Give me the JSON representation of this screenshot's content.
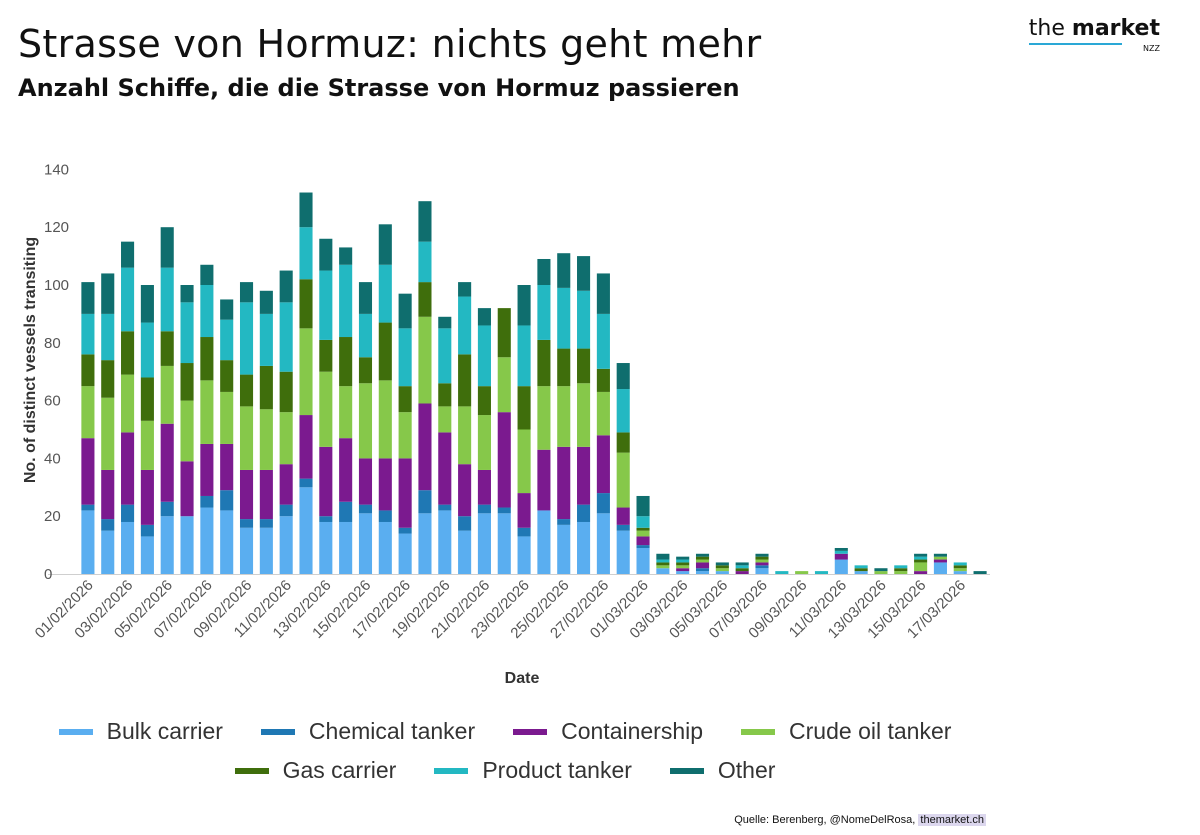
{
  "header": {
    "title": "Strasse von Hormuz: nichts geht mehr",
    "subtitle": "Anzahl Schiffe, die die Strasse von Hormuz passieren"
  },
  "logo": {
    "prefix": "the ",
    "brand": "market",
    "sub": "NZZ",
    "accent": "#2aa8d6"
  },
  "source": {
    "prefix": "Quelle: Berenberg, @NomeDelRosa, ",
    "link": "themarket.ch"
  },
  "chart_data": {
    "type": "bar",
    "stacked": true,
    "title": "",
    "xlabel": "Date",
    "ylabel": "No. of distinct vessels transiting",
    "ylim": [
      0,
      140
    ],
    "yticks": [
      0,
      20,
      40,
      60,
      80,
      100,
      120,
      140
    ],
    "categories": [
      "01/02/2026",
      "02/02/2026",
      "03/02/2026",
      "04/02/2026",
      "05/02/2026",
      "06/02/2026",
      "07/02/2026",
      "08/02/2026",
      "09/02/2026",
      "10/02/2026",
      "11/02/2026",
      "12/02/2026",
      "13/02/2026",
      "14/02/2026",
      "15/02/2026",
      "16/02/2026",
      "17/02/2026",
      "18/02/2026",
      "19/02/2026",
      "20/02/2026",
      "21/02/2026",
      "22/02/2026",
      "23/02/2026",
      "24/02/2026",
      "25/02/2026",
      "26/02/2026",
      "27/02/2026",
      "28/02/2026",
      "01/03/2026",
      "02/03/2026",
      "03/03/2026",
      "04/03/2026",
      "05/03/2026",
      "06/03/2026",
      "07/03/2026",
      "08/03/2026",
      "09/03/2026",
      "10/03/2026",
      "11/03/2026",
      "12/03/2026",
      "13/03/2026",
      "14/03/2026",
      "15/03/2026",
      "16/03/2026",
      "17/03/2026",
      "18/03/2026"
    ],
    "tick_labels": [
      "01/02/2026",
      "03/02/2026",
      "05/02/2026",
      "07/02/2026",
      "09/02/2026",
      "11/02/2026",
      "13/02/2026",
      "15/02/2026",
      "17/02/2026",
      "19/02/2026",
      "21/02/2026",
      "23/02/2026",
      "25/02/2026",
      "27/02/2026",
      "01/03/2026",
      "03/03/2026",
      "05/03/2026",
      "07/03/2026",
      "09/03/2026",
      "11/03/2026",
      "13/03/2026",
      "15/03/2026",
      "17/03/2026"
    ],
    "series": [
      {
        "name": "Bulk carrier",
        "color": "#5aaef0",
        "values": [
          22,
          15,
          18,
          13,
          20,
          20,
          23,
          22,
          16,
          16,
          20,
          30,
          18,
          18,
          21,
          18,
          14,
          21,
          22,
          15,
          21,
          21,
          13,
          22,
          17,
          18,
          21,
          15,
          9,
          2,
          1,
          1,
          1,
          0,
          2,
          0,
          0,
          0,
          5,
          1,
          0,
          0,
          0,
          4,
          1,
          0
        ]
      },
      {
        "name": "Chemical tanker",
        "color": "#1f78b4",
        "values": [
          2,
          4,
          6,
          4,
          5,
          0,
          4,
          7,
          3,
          3,
          4,
          3,
          2,
          7,
          3,
          4,
          2,
          8,
          2,
          5,
          3,
          2,
          3,
          0,
          2,
          6,
          7,
          2,
          1,
          0,
          0,
          1,
          0,
          0,
          1,
          0,
          0,
          0,
          0,
          0,
          0,
          0,
          0,
          0,
          0,
          0
        ]
      },
      {
        "name": "Containership",
        "color": "#7b1a8f",
        "values": [
          23,
          17,
          25,
          19,
          27,
          19,
          18,
          16,
          17,
          17,
          14,
          22,
          24,
          22,
          16,
          18,
          24,
          30,
          25,
          18,
          12,
          33,
          12,
          21,
          25,
          20,
          20,
          6,
          3,
          0,
          1,
          2,
          0,
          1,
          1,
          0,
          0,
          0,
          2,
          0,
          0,
          0,
          1,
          1,
          0,
          0
        ]
      },
      {
        "name": "Crude oil tanker",
        "color": "#86c84a",
        "values": [
          18,
          25,
          20,
          17,
          20,
          21,
          22,
          18,
          22,
          21,
          18,
          30,
          26,
          18,
          26,
          27,
          16,
          30,
          9,
          20,
          19,
          19,
          22,
          22,
          21,
          22,
          15,
          19,
          2,
          1,
          1,
          1,
          1,
          0,
          1,
          0,
          1,
          0,
          0,
          0,
          1,
          1,
          3,
          1,
          1,
          0
        ]
      },
      {
        "name": "Gas carrier",
        "color": "#3f6e0c",
        "values": [
          11,
          13,
          15,
          15,
          12,
          13,
          15,
          11,
          11,
          15,
          14,
          17,
          11,
          17,
          9,
          20,
          9,
          12,
          8,
          18,
          10,
          17,
          15,
          16,
          13,
          12,
          8,
          7,
          1,
          1,
          1,
          1,
          1,
          1,
          1,
          0,
          0,
          0,
          0,
          1,
          0,
          1,
          1,
          0,
          1,
          0
        ]
      },
      {
        "name": "Product tanker",
        "color": "#23b8c2",
        "values": [
          14,
          16,
          22,
          19,
          22,
          21,
          18,
          14,
          25,
          18,
          24,
          18,
          24,
          25,
          15,
          20,
          20,
          14,
          19,
          20,
          21,
          0,
          21,
          19,
          21,
          20,
          19,
          15,
          4,
          1,
          1,
          0,
          0,
          1,
          0,
          1,
          0,
          1,
          1,
          1,
          0,
          1,
          1,
          0,
          1,
          0
        ]
      },
      {
        "name": "Other",
        "color": "#0f6e6e",
        "values": [
          11,
          14,
          9,
          13,
          14,
          6,
          7,
          7,
          7,
          8,
          11,
          12,
          11,
          6,
          11,
          14,
          12,
          14,
          4,
          5,
          6,
          0,
          14,
          9,
          12,
          12,
          14,
          9,
          7,
          2,
          1,
          1,
          1,
          1,
          1,
          0,
          0,
          0,
          1,
          0,
          1,
          0,
          1,
          1,
          0,
          1
        ]
      }
    ]
  }
}
